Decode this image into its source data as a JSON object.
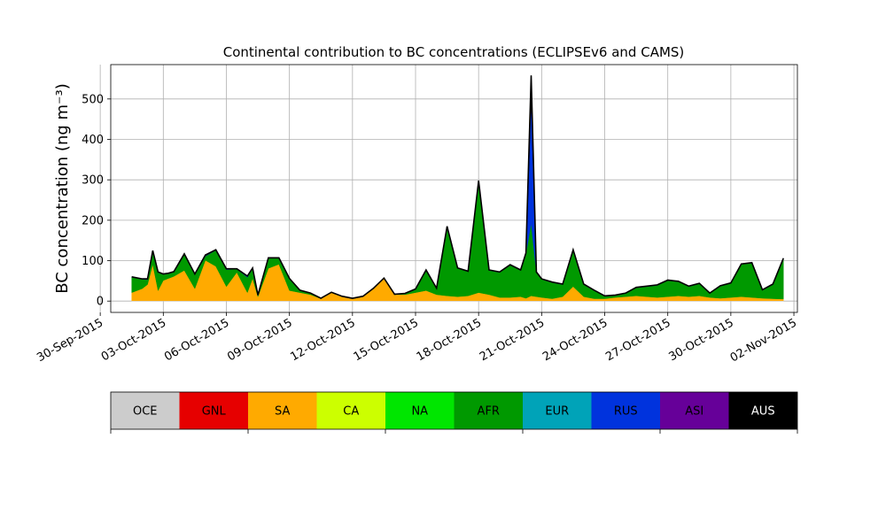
{
  "chart_data": {
    "type": "area",
    "title": "Continental contribution to BC concentrations (ECLIPSEv6 and CAMS)",
    "ylabel": "BC concentration (ng m⁻³)",
    "xlabel": "",
    "ylim": [
      -28,
      585
    ],
    "yticks": [
      0,
      100,
      200,
      300,
      400,
      500
    ],
    "xlim": [
      "2015-09-30T12:00",
      "2015-11-02T04:00"
    ],
    "xticks": [
      "30-Sep-2015",
      "03-Oct-2015",
      "06-Oct-2015",
      "09-Oct-2015",
      "12-Oct-2015",
      "15-Oct-2015",
      "18-Oct-2015",
      "21-Oct-2015",
      "24-Oct-2015",
      "27-Oct-2015",
      "30-Oct-2015",
      "02-Nov-2015"
    ],
    "grid": true,
    "stacked": true,
    "x": [
      "2015-10-01T12:00",
      "2015-10-02T00:00",
      "2015-10-02T06:00",
      "2015-10-02T12:00",
      "2015-10-02T18:00",
      "2015-10-03T00:00",
      "2015-10-03T06:00",
      "2015-10-03T12:00",
      "2015-10-04T00:00",
      "2015-10-04T12:00",
      "2015-10-05T00:00",
      "2015-10-05T12:00",
      "2015-10-06T00:00",
      "2015-10-06T12:00",
      "2015-10-07T00:00",
      "2015-10-07T06:00",
      "2015-10-07T12:00",
      "2015-10-08T00:00",
      "2015-10-08T12:00",
      "2015-10-09T00:00",
      "2015-10-09T12:00",
      "2015-10-10T00:00",
      "2015-10-10T12:00",
      "2015-10-11T00:00",
      "2015-10-11T12:00",
      "2015-10-12T00:00",
      "2015-10-12T12:00",
      "2015-10-13T00:00",
      "2015-10-13T12:00",
      "2015-10-14T00:00",
      "2015-10-14T12:00",
      "2015-10-15T00:00",
      "2015-10-15T12:00",
      "2015-10-16T00:00",
      "2015-10-16T12:00",
      "2015-10-17T00:00",
      "2015-10-17T12:00",
      "2015-10-18T00:00",
      "2015-10-18T12:00",
      "2015-10-19T00:00",
      "2015-10-19T12:00",
      "2015-10-20T00:00",
      "2015-10-20T06:00",
      "2015-10-20T12:00",
      "2015-10-20T18:00",
      "2015-10-21T00:00",
      "2015-10-21T12:00",
      "2015-10-22T00:00",
      "2015-10-22T12:00",
      "2015-10-23T00:00",
      "2015-10-23T12:00",
      "2015-10-24T00:00",
      "2015-10-24T12:00",
      "2015-10-25T00:00",
      "2015-10-25T12:00",
      "2015-10-26T00:00",
      "2015-10-26T12:00",
      "2015-10-27T00:00",
      "2015-10-27T12:00",
      "2015-10-28T00:00",
      "2015-10-28T12:00",
      "2015-10-29T00:00",
      "2015-10-29T12:00",
      "2015-10-30T00:00",
      "2015-10-30T12:00",
      "2015-10-31T00:00",
      "2015-10-31T12:00",
      "2015-11-01T00:00",
      "2015-11-01T12:00"
    ],
    "series": [
      {
        "name": "OCE",
        "color": "#cccccc",
        "values": [
          1,
          1,
          1,
          1,
          1,
          1,
          1,
          1,
          1,
          1,
          1,
          1,
          1,
          1,
          1,
          1,
          1,
          1,
          1,
          1,
          1,
          1,
          1,
          1,
          1,
          1,
          1,
          1,
          1,
          1,
          1,
          1,
          1,
          1,
          1,
          1,
          1,
          1,
          1,
          1,
          1,
          1,
          1,
          1,
          1,
          1,
          1,
          1,
          1,
          1,
          1,
          1,
          1,
          1,
          1,
          1,
          1,
          1,
          1,
          1,
          1,
          1,
          1,
          1,
          1,
          1,
          1,
          1,
          1
        ]
      },
      {
        "name": "GNL",
        "color": "#e60000",
        "values": [
          0,
          0,
          0,
          0,
          0,
          0,
          0,
          0,
          0,
          0,
          0,
          0,
          0,
          0,
          0,
          0,
          0,
          0,
          0,
          0,
          0,
          0,
          0,
          0,
          0,
          0,
          0,
          0,
          0,
          0,
          0,
          0,
          0,
          0,
          0,
          0,
          0,
          0,
          0,
          0,
          0,
          0,
          0,
          0,
          0,
          0,
          0,
          0,
          0,
          0,
          0,
          0,
          0,
          0,
          0,
          0,
          0,
          0,
          0,
          0,
          0,
          0,
          0,
          0,
          0,
          0,
          0,
          0,
          0
        ]
      },
      {
        "name": "SA",
        "color": "#ffaa00",
        "values": [
          20,
          30,
          40,
          90,
          25,
          50,
          55,
          60,
          75,
          30,
          100,
          85,
          35,
          70,
          20,
          55,
          10,
          80,
          90,
          25,
          20,
          15,
          5,
          20,
          10,
          5,
          10,
          30,
          55,
          15,
          15,
          20,
          25,
          15,
          12,
          10,
          12,
          20,
          15,
          8,
          8,
          10,
          6,
          12,
          10,
          8,
          5,
          10,
          35,
          10,
          5,
          5,
          8,
          10,
          12,
          10,
          8,
          10,
          12,
          10,
          12,
          8,
          6,
          8,
          10,
          8,
          6,
          5,
          4
        ]
      },
      {
        "name": "CA",
        "color": "#ccff00",
        "values": [
          0,
          0,
          0,
          0,
          0,
          0,
          0,
          0,
          0,
          0,
          0,
          0,
          0,
          0,
          0,
          0,
          0,
          0,
          0,
          0,
          0,
          0,
          0,
          0,
          0,
          0,
          0,
          0,
          0,
          0,
          0,
          0,
          0,
          0,
          0,
          0,
          0,
          0,
          0,
          0,
          0,
          0,
          0,
          0,
          0,
          0,
          0,
          0,
          0,
          0,
          0,
          0,
          0,
          0,
          0,
          0,
          0,
          0,
          0,
          0,
          0,
          0,
          0,
          0,
          0,
          0,
          0,
          0,
          0
        ]
      },
      {
        "name": "NA",
        "color": "#00e600",
        "values": [
          0,
          0,
          0,
          0,
          0,
          0,
          0,
          0,
          0,
          0,
          0,
          0,
          0,
          0,
          0,
          0,
          0,
          0,
          0,
          0,
          0,
          0,
          0,
          0,
          0,
          0,
          0,
          0,
          0,
          0,
          0,
          0,
          0,
          0,
          0,
          0,
          0,
          0,
          0,
          0,
          0,
          0,
          0,
          0,
          0,
          0,
          0,
          0,
          0,
          0,
          0,
          0,
          0,
          0,
          0,
          0,
          0,
          0,
          0,
          0,
          0,
          0,
          0,
          0,
          0,
          0,
          0,
          0,
          0
        ]
      },
      {
        "name": "AFR",
        "color": "#009900",
        "values": [
          38,
          23,
          12,
          30,
          45,
          15,
          12,
          11,
          40,
          35,
          10,
          40,
          42,
          8,
          38,
          25,
          3,
          25,
          15,
          28,
          5,
          3,
          0,
          0,
          0,
          0,
          0,
          0,
          0,
          0,
          2,
          8,
          50,
          15,
          170,
          70,
          60,
          275,
          60,
          62,
          80,
          65,
          110,
          180,
          60,
          45,
          40,
          30,
          90,
          30,
          20,
          6,
          5,
          8,
          20,
          25,
          30,
          40,
          35,
          25,
          30,
          10,
          30,
          35,
          80,
          85,
          20,
          35,
          100
        ]
      },
      {
        "name": "EUR",
        "color": "#00a3b8",
        "values": [
          0,
          0,
          0,
          0,
          0,
          0,
          0,
          0,
          0,
          0,
          0,
          0,
          0,
          0,
          0,
          0,
          0,
          0,
          0,
          0,
          0,
          0,
          0,
          0,
          0,
          0,
          0,
          0,
          0,
          0,
          0,
          0,
          0,
          0,
          0,
          0,
          0,
          0,
          0,
          0,
          0,
          0,
          0,
          0,
          0,
          0,
          0,
          0,
          0,
          0,
          0,
          0,
          0,
          0,
          0,
          0,
          0,
          0,
          0,
          0,
          0,
          0,
          0,
          0,
          0,
          0,
          0,
          0,
          0
        ]
      },
      {
        "name": "RUS",
        "color": "#0033dd",
        "values": [
          1,
          1,
          2,
          2,
          1,
          1,
          1,
          1,
          1,
          1,
          1,
          1,
          2,
          1,
          3,
          1,
          1,
          1,
          1,
          2,
          1,
          1,
          1,
          1,
          1,
          1,
          1,
          1,
          1,
          1,
          1,
          1,
          1,
          1,
          2,
          1,
          1,
          2,
          1,
          1,
          1,
          1,
          2,
          300,
          1,
          1,
          1,
          1,
          1,
          1,
          1,
          1,
          1,
          1,
          1,
          1,
          1,
          1,
          1,
          1,
          1,
          1,
          1,
          1,
          1,
          1,
          1,
          1,
          1
        ]
      },
      {
        "name": "ASI",
        "color": "#660099",
        "values": [
          0,
          0,
          0,
          0,
          0,
          0,
          0,
          0,
          0,
          0,
          0,
          0,
          0,
          0,
          0,
          0,
          0,
          0,
          0,
          0,
          0,
          0,
          0,
          0,
          0,
          0,
          0,
          0,
          0,
          0,
          0,
          0,
          0,
          0,
          0,
          0,
          0,
          0,
          0,
          0,
          0,
          0,
          0,
          0,
          0,
          0,
          0,
          0,
          0,
          0,
          0,
          0,
          0,
          0,
          0,
          0,
          0,
          0,
          0,
          0,
          0,
          0,
          0,
          0,
          0,
          0,
          0,
          0,
          0
        ]
      },
      {
        "name": "AUS",
        "color": "#000000",
        "values": [
          0,
          0,
          0,
          2,
          0,
          0,
          0,
          0,
          0,
          0,
          2,
          0,
          0,
          0,
          0,
          0,
          0,
          0,
          0,
          0,
          0,
          0,
          0,
          0,
          0,
          0,
          0,
          0,
          0,
          0,
          0,
          0,
          0,
          0,
          0,
          0,
          0,
          0,
          0,
          0,
          0,
          0,
          0,
          65,
          0,
          0,
          0,
          0,
          0,
          0,
          0,
          0,
          0,
          0,
          0,
          0,
          0,
          0,
          0,
          0,
          0,
          0,
          0,
          0,
          0,
          0,
          0,
          0,
          0
        ]
      }
    ]
  }
}
